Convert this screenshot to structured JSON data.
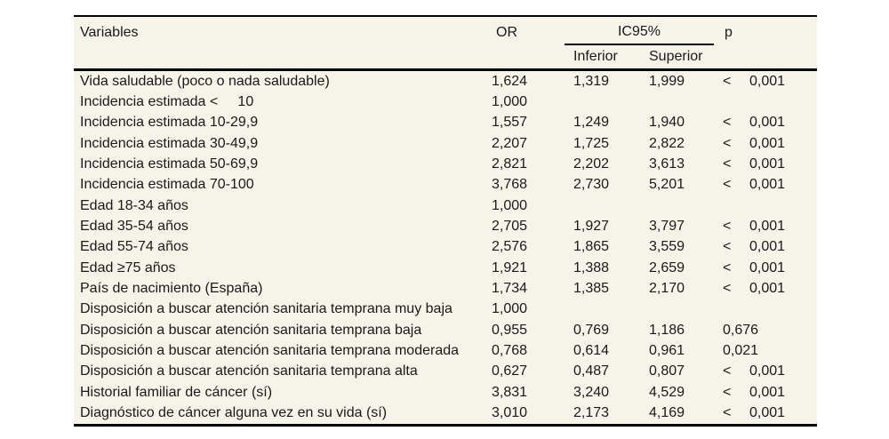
{
  "table": {
    "columns": {
      "variables": "Variables",
      "or": "OR",
      "ic95": "IC95%",
      "inferior": "Inferior",
      "superior": "Superior",
      "p": "p"
    },
    "rows": [
      {
        "variable": "Vida saludable (poco o nada saludable)",
        "or": "1,624",
        "inferior": "1,319",
        "superior": "1,999",
        "p_sign": "<",
        "p_value": "0,001"
      },
      {
        "variable": "Incidencia estimada <     10",
        "or": "1,000",
        "inferior": "",
        "superior": "",
        "p_sign": "",
        "p_value": ""
      },
      {
        "variable": "Incidencia estimada 10-29,9",
        "or": "1,557",
        "inferior": "1,249",
        "superior": "1,940",
        "p_sign": "<",
        "p_value": "0,001"
      },
      {
        "variable": "Incidencia estimada 30-49,9",
        "or": "2,207",
        "inferior": "1,725",
        "superior": "2,822",
        "p_sign": "<",
        "p_value": "0,001"
      },
      {
        "variable": "Incidencia estimada 50-69,9",
        "or": "2,821",
        "inferior": "2,202",
        "superior": "3,613",
        "p_sign": "<",
        "p_value": "0,001"
      },
      {
        "variable": "Incidencia estimada 70-100",
        "or": "3,768",
        "inferior": "2,730",
        "superior": "5,201",
        "p_sign": "<",
        "p_value": "0,001"
      },
      {
        "variable": "Edad 18-34 años",
        "or": "1,000",
        "inferior": "",
        "superior": "",
        "p_sign": "",
        "p_value": ""
      },
      {
        "variable": "Edad 35-54 años",
        "or": "2,705",
        "inferior": "1,927",
        "superior": "3,797",
        "p_sign": "<",
        "p_value": "0,001"
      },
      {
        "variable": "Edad 55-74 años",
        "or": "2,576",
        "inferior": "1,865",
        "superior": "3,559",
        "p_sign": "<",
        "p_value": "0,001"
      },
      {
        "variable": "Edad ≥75 años",
        "or": "1,921",
        "inferior": "1,388",
        "superior": "2,659",
        "p_sign": "<",
        "p_value": "0,001"
      },
      {
        "variable": "País de nacimiento (España)",
        "or": "1,734",
        "inferior": "1,385",
        "superior": "2,170",
        "p_sign": "<",
        "p_value": "0,001"
      },
      {
        "variable": "Disposición a buscar atención sanitaria temprana muy baja",
        "or": "1,000",
        "inferior": "",
        "superior": "",
        "p_sign": "",
        "p_value": ""
      },
      {
        "variable": "Disposición a buscar atención sanitaria temprana baja",
        "or": "0,955",
        "inferior": "0,769",
        "superior": "1,186",
        "p_sign": "",
        "p_value": "0,676"
      },
      {
        "variable": "Disposición a buscar atención sanitaria temprana moderada",
        "or": "0,768",
        "inferior": "0,614",
        "superior": "0,961",
        "p_sign": "",
        "p_value": "0,021"
      },
      {
        "variable": "Disposición a buscar atención sanitaria temprana alta",
        "or": "0,627",
        "inferior": "0,487",
        "superior": "0,807",
        "p_sign": "<",
        "p_value": "0,001"
      },
      {
        "variable": "Historial familiar de cáncer (sí)",
        "or": "3,831",
        "inferior": "3,240",
        "superior": "4,529",
        "p_sign": "<",
        "p_value": "0,001"
      },
      {
        "variable": "Diagnóstico de cáncer alguna vez en su vida (sí)",
        "or": "3,010",
        "inferior": "2,173",
        "superior": "4,169",
        "p_sign": "<",
        "p_value": "0,001"
      }
    ]
  },
  "colors": {
    "page_bg": "#ffffff",
    "table_bg": "#f6f3e9",
    "border": "#000000",
    "text": "#1a1a1a"
  }
}
